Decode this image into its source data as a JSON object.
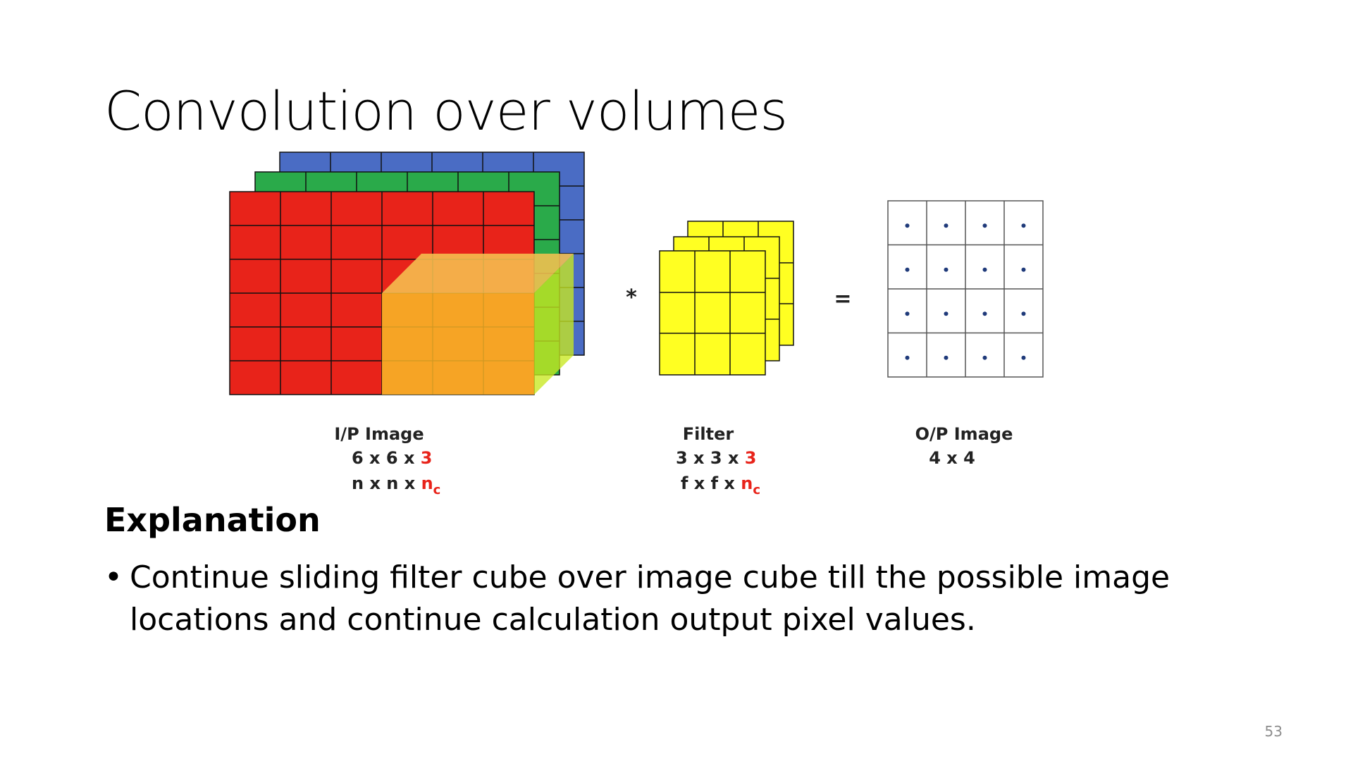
{
  "slide": {
    "title": "Convolution over volumes",
    "page_number": "53"
  },
  "diagram": {
    "input": {
      "title": "I/P Image",
      "dims": "6 x 6 x ",
      "dims_channels": "3",
      "symbolic": "n x n x ",
      "symbolic_channel_base": "n",
      "symbolic_channel_sub": "c",
      "rows": 6,
      "cols": 6,
      "channel_colors": [
        "#e8231a",
        "#2aaa4a",
        "#4a6cc4"
      ]
    },
    "filter": {
      "title": "Filter",
      "dims": "3 x 3 x ",
      "dims_channels": "3",
      "symbolic": "f x f x ",
      "symbolic_channel_base": "n",
      "symbolic_channel_sub": "c",
      "rows": 3,
      "cols": 3,
      "color": "#ffff22"
    },
    "output": {
      "title": "O/P Image",
      "dims": "4 x 4",
      "rows": 4,
      "cols": 4
    },
    "operator_convolve": "*",
    "operator_equals": "="
  },
  "explanation": {
    "heading": "Explanation",
    "bullets": [
      "Continue sliding filter cube over image cube till the possible image locations and continue calculation output pixel values."
    ]
  }
}
